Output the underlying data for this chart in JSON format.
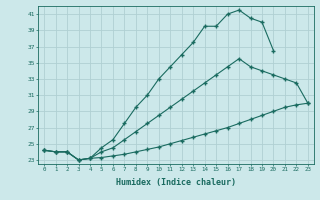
{
  "xlabel": "Humidex (Indice chaleur)",
  "ylabel": "",
  "bg_color": "#cce8ea",
  "grid_color": "#b0d0d3",
  "line_color": "#1a6b60",
  "xlim": [
    -0.5,
    23.5
  ],
  "ylim": [
    22.5,
    42
  ],
  "xticks": [
    0,
    1,
    2,
    3,
    4,
    5,
    6,
    7,
    8,
    9,
    10,
    11,
    12,
    13,
    14,
    15,
    16,
    17,
    18,
    19,
    20,
    21,
    22,
    23
  ],
  "yticks": [
    23,
    25,
    27,
    29,
    31,
    33,
    35,
    37,
    39,
    41
  ],
  "curve_max": [
    24.2,
    24.0,
    24.0,
    23.0,
    23.2,
    24.5,
    25.5,
    27.5,
    29.5,
    31.0,
    33.0,
    34.5,
    36.0,
    37.5,
    39.5,
    39.5,
    41.0,
    41.5,
    40.5,
    40.0,
    36.5,
    null,
    null,
    null
  ],
  "curve_mid": [
    24.2,
    24.0,
    24.0,
    23.0,
    23.2,
    24.0,
    24.5,
    25.5,
    26.5,
    27.5,
    28.5,
    29.5,
    30.5,
    31.5,
    32.5,
    33.5,
    34.5,
    35.5,
    34.5,
    34.0,
    33.5,
    33.0,
    32.5,
    30.0
  ],
  "curve_min": [
    24.2,
    24.0,
    24.0,
    23.0,
    23.2,
    23.3,
    23.5,
    23.7,
    24.0,
    24.3,
    24.6,
    25.0,
    25.4,
    25.8,
    26.2,
    26.6,
    27.0,
    27.5,
    28.0,
    28.5,
    29.0,
    29.5,
    29.8,
    30.0
  ]
}
